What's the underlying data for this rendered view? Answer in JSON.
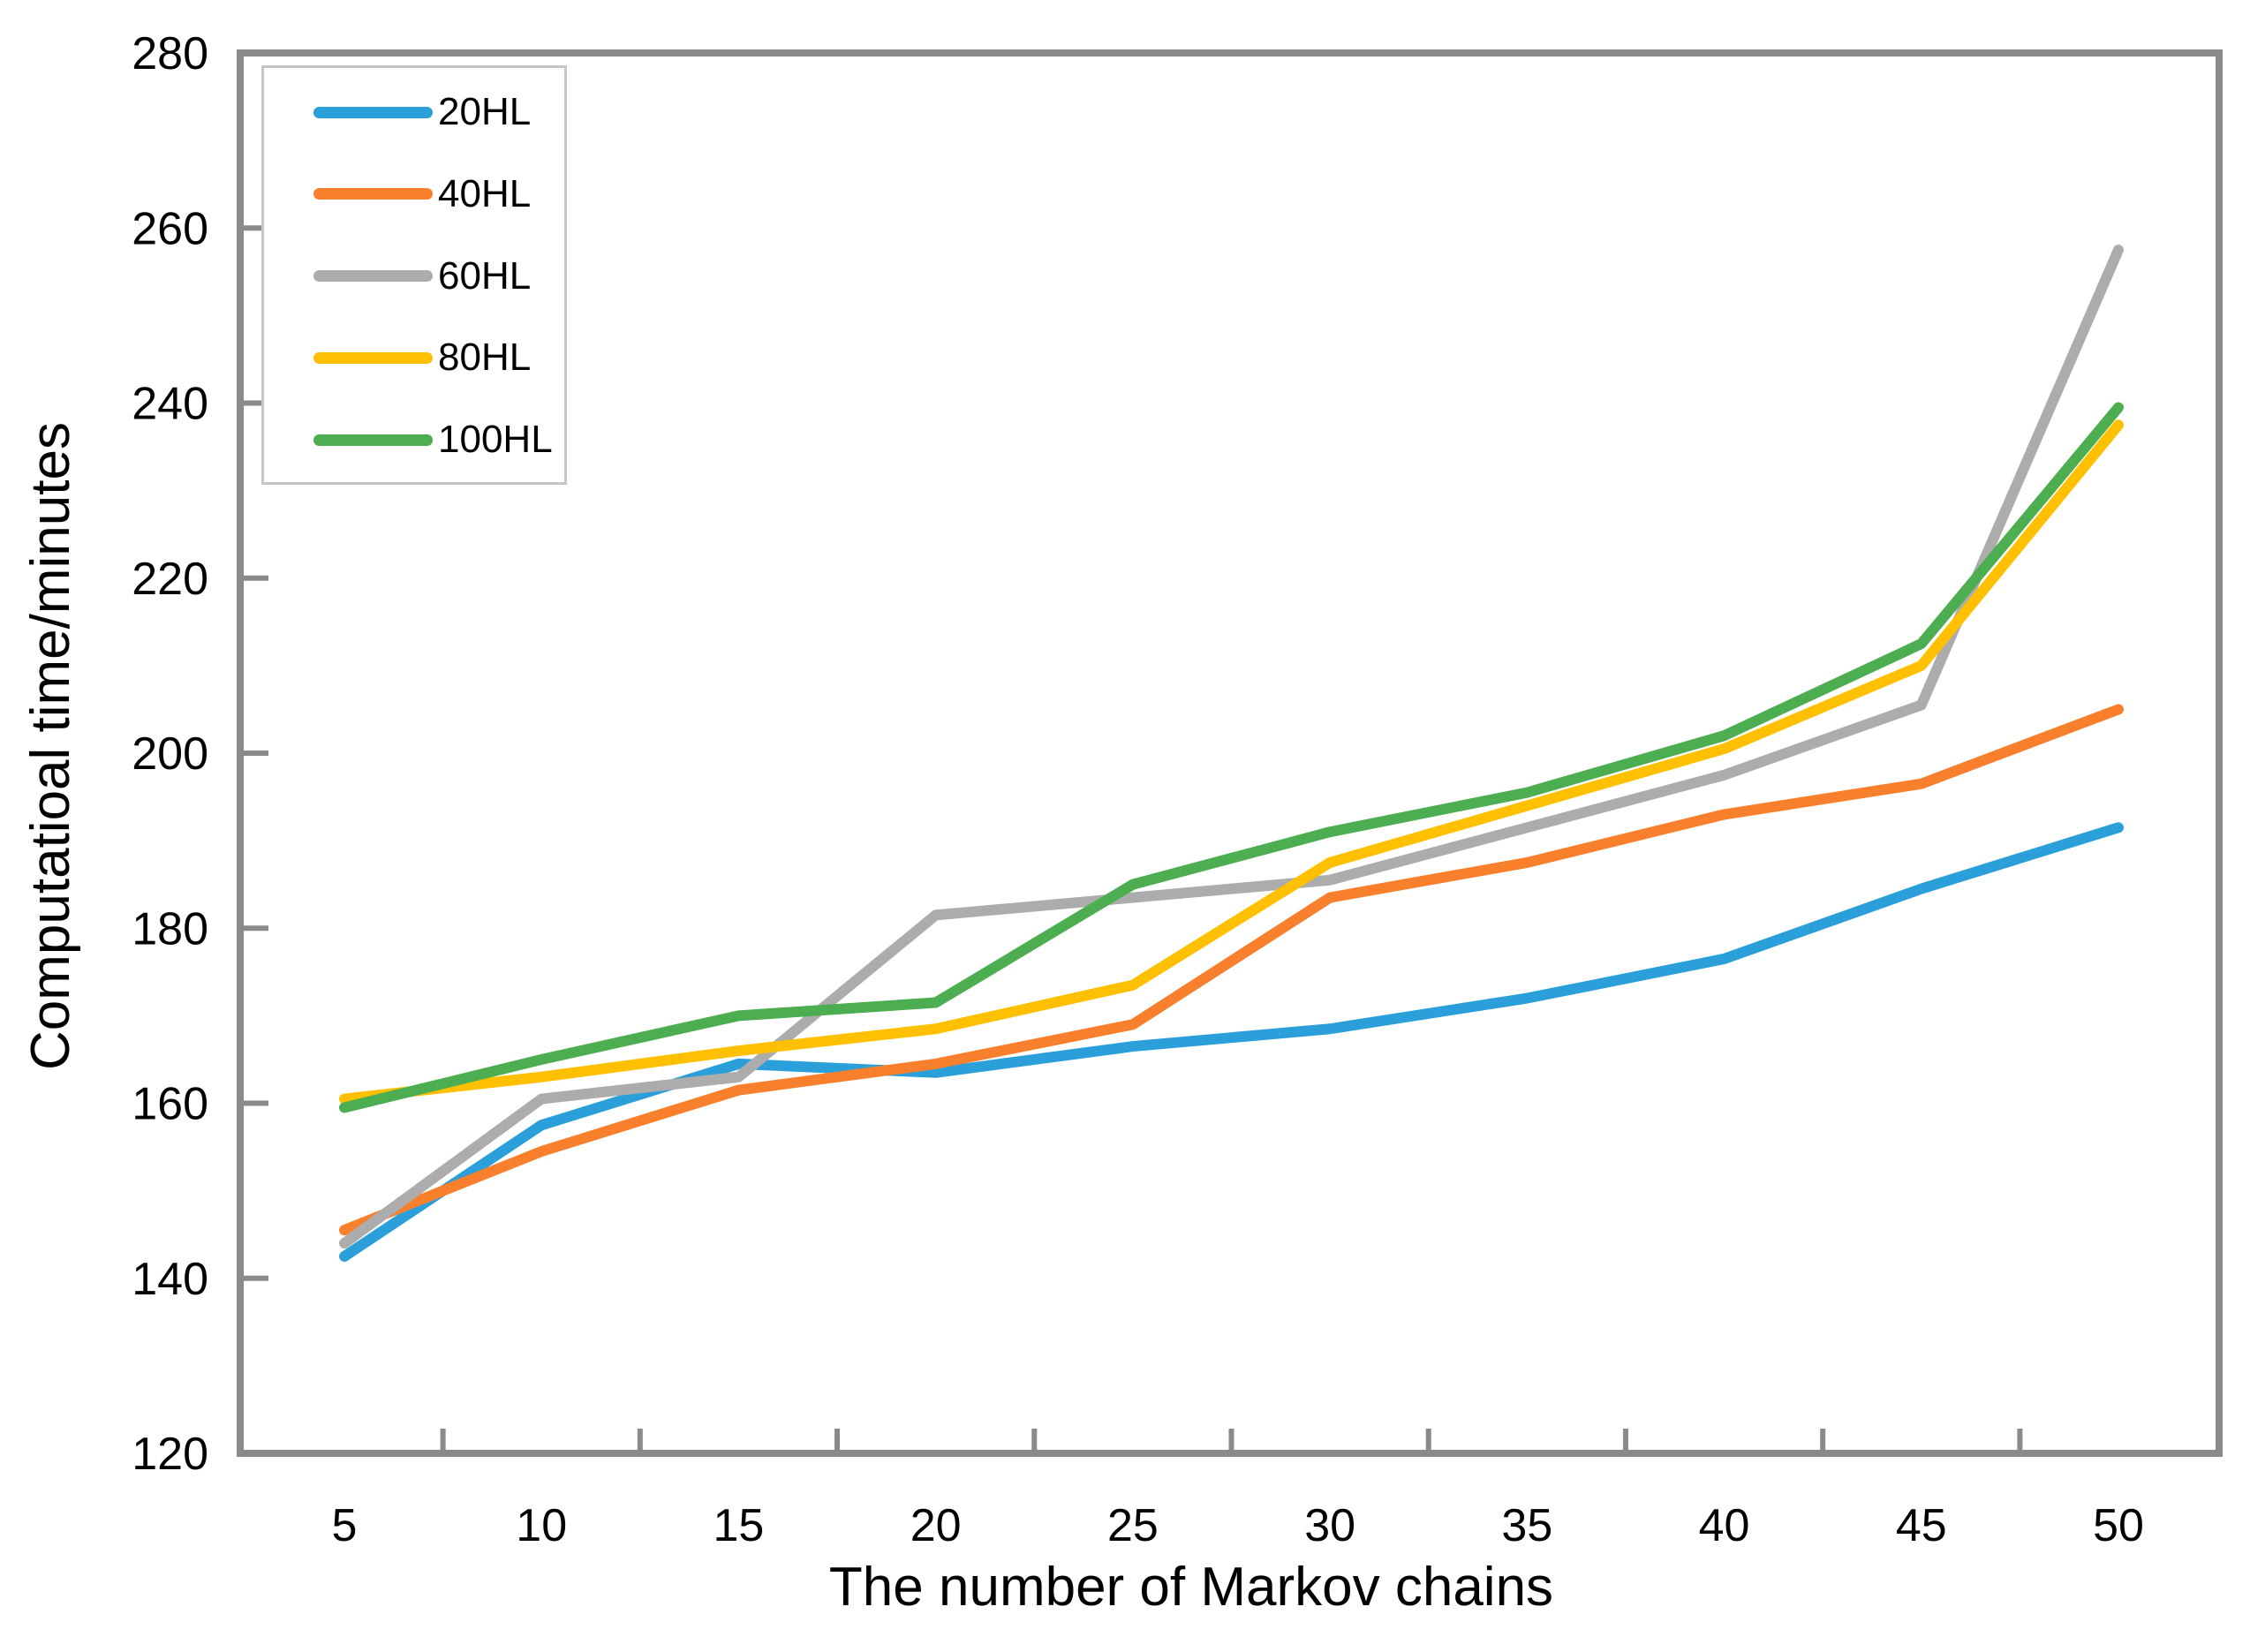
{
  "style": {
    "axis_color": "#8A8A8A",
    "tick_label_color": "#000000",
    "legend_border_color": "#C6C6C6",
    "background_color": "#FFFFFF"
  },
  "chart_data": {
    "type": "line",
    "title": "",
    "xlabel": "The number of Markov chains",
    "ylabel": "Computatioal time/minutes",
    "x": [
      5,
      10,
      15,
      20,
      25,
      30,
      35,
      40,
      45,
      50
    ],
    "ylim": [
      120,
      280
    ],
    "y_ticks": [
      120,
      140,
      160,
      180,
      200,
      220,
      240,
      260,
      280
    ],
    "grid": false,
    "legend_position": "top-left",
    "series": [
      {
        "name": "20HL",
        "color": "#2A9FDA",
        "values": [
          142.5,
          157.5,
          164.5,
          163.5,
          166.5,
          168.5,
          172,
          176.5,
          184.5,
          191.5
        ]
      },
      {
        "name": "40HL",
        "color": "#F87F2C",
        "values": [
          145.5,
          154.5,
          161.5,
          164.5,
          169,
          183.5,
          187.5,
          193,
          196.5,
          205
        ]
      },
      {
        "name": "60HL",
        "color": "#ACACAC",
        "values": [
          144,
          160.5,
          163,
          181.5,
          183.5,
          185.5,
          191.5,
          197.5,
          205.5,
          257.5
        ]
      },
      {
        "name": "80HL",
        "color": "#FFC001",
        "values": [
          160.5,
          163,
          166,
          168.5,
          173.5,
          187.5,
          194,
          200.5,
          210,
          237.5
        ]
      },
      {
        "name": "100HL",
        "color": "#4CAE50",
        "values": [
          159.5,
          165,
          170,
          171.5,
          185,
          191,
          195.5,
          202,
          212.5,
          239.5
        ]
      }
    ]
  }
}
